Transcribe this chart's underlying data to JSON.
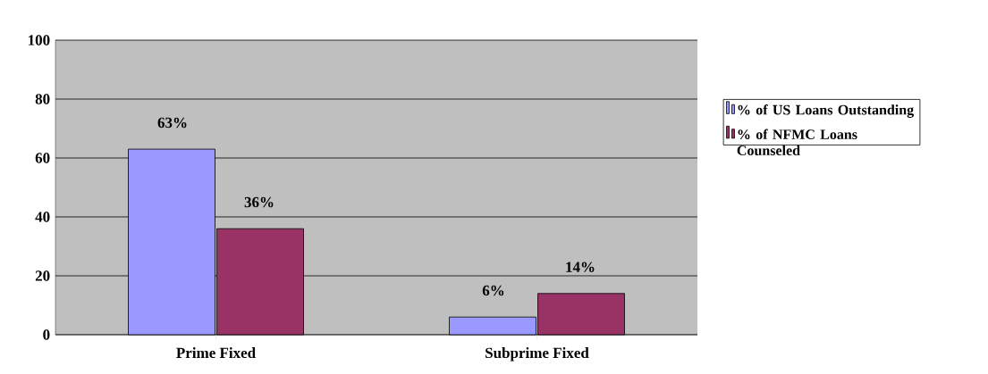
{
  "chart_data": {
    "type": "bar",
    "categories": [
      "Prime Fixed",
      "Subprime Fixed"
    ],
    "series": [
      {
        "name": "% of US Loans Outstanding",
        "color": "#9999ff",
        "values": [
          63,
          6
        ],
        "value_labels": [
          "63%",
          "6%"
        ]
      },
      {
        "name": "% of NFMC Loans Counseled",
        "color": "#993366",
        "values": [
          36,
          14
        ],
        "value_labels": [
          "36%",
          "14%"
        ]
      }
    ],
    "ylim": [
      0,
      100
    ],
    "yticks": [
      0,
      20,
      40,
      60,
      80,
      100
    ],
    "grid": "y",
    "legend": "right"
  }
}
